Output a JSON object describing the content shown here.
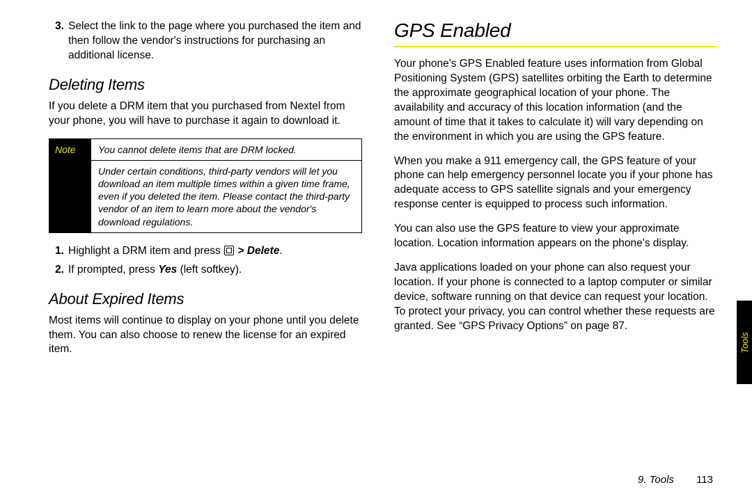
{
  "accent_color": "#f7e400",
  "left": {
    "continued_step": {
      "num": "3.",
      "text": "Select the link to the page where you purchased the item and then follow the vendor's instructions for purchasing an additional license."
    },
    "h_deleting": "Deleting Items",
    "p_deleting": "If you delete a DRM item that you purchased from Nextel from your phone, you will have to purchase it again to download it.",
    "note": {
      "label": "Note",
      "row1": "You cannot delete items that are DRM locked.",
      "row2": "Under certain conditions, third-party vendors will let you download an item multiple times within a given time frame, even if you deleted the item. Please contact the third-party vendor of an item to learn more about the vendor's download regulations."
    },
    "steps": [
      {
        "num": "1.",
        "pre": "Highlight a DRM item and press ",
        "action": " > Delete",
        "post": "."
      },
      {
        "num": "2.",
        "pre": "If prompted, press ",
        "action": "Yes",
        "post": " (left softkey)."
      }
    ],
    "h_expired": "About Expired Items",
    "p_expired": "Most items will continue to display on your phone until you delete them. You can also choose to renew the license for an expired item."
  },
  "right": {
    "h_gps": "GPS Enabled",
    "p1": "Your phone's GPS Enabled feature uses information from Global Positioning System (GPS) satellites orbiting the Earth to determine the approximate geographical location of your phone. The availability and accuracy of this location information (and the amount of time that it takes to calculate it) will vary depending on the environment in which you are using the GPS feature.",
    "p2": "When you make a 911 emergency call, the GPS feature of your phone can help emergency personnel locate you if your phone has adequate access to GPS satellite signals and your emergency response center is equipped to process such information.",
    "p3": "You can also use the GPS feature to view your approximate location. Location information appears on the phone's display.",
    "p4": "Java applications loaded on your phone can also request your location. If your phone is connected to a laptop computer or similar device, software running on that device can request your location. To protect your privacy, you can control whether these requests are granted. See “GPS Privacy Options” on page 87."
  },
  "sidetab": "Tools",
  "footer": {
    "section": "9. Tools",
    "page": "113"
  }
}
